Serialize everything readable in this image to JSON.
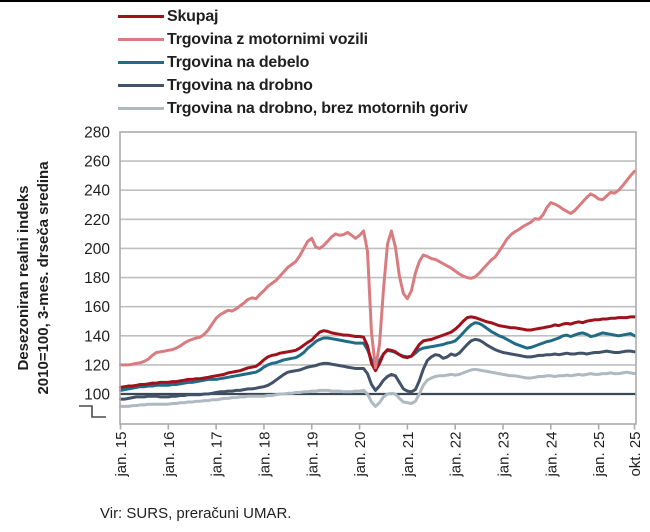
{
  "top_border_color": "#000000",
  "source_note": "Vir: SURS, preračuni UMAR.",
  "chart_data": {
    "type": "line",
    "title": "",
    "y_axis": {
      "title_line1": "Desezoniran realni indeks",
      "title_line2": "2010=100, 3-mes. drseča sredina",
      "ticks": [
        100,
        120,
        140,
        160,
        180,
        200,
        220,
        240,
        260,
        280
      ],
      "range_shown": [
        100,
        280
      ],
      "axis_break": true
    },
    "x_axis": {
      "tick_labels": [
        "jan. 15",
        "jan. 16",
        "jan. 17",
        "jan. 18",
        "jan. 19",
        "jan. 20",
        "jan. 21",
        "jan. 22",
        "jan. 23",
        "jan. 24",
        "jan. 25",
        "okt. 25"
      ],
      "tick_months": [
        0,
        12,
        24,
        36,
        48,
        60,
        72,
        84,
        96,
        108,
        120,
        129
      ],
      "months_total": 130,
      "start": "jan. 15",
      "end": "okt. 25"
    },
    "reference_line": {
      "value": 100,
      "color": "#3D4856"
    },
    "grid": {
      "on": true,
      "gridline_color": "#BFBFBF",
      "border_color": "#ABABAB",
      "text_color": "#1F1F1F"
    },
    "legend_position": "top-left",
    "series": [
      {
        "name": "Skupaj",
        "color": "#A0111B",
        "values": [
          104.5,
          105,
          105.5,
          105.5,
          106,
          106.5,
          106.5,
          107,
          107.5,
          107.5,
          108,
          108,
          108,
          108.5,
          108.5,
          109,
          109.5,
          110,
          110,
          110.5,
          110.5,
          111,
          111.5,
          112,
          112.5,
          113,
          113.5,
          114.5,
          115,
          115.5,
          116,
          117,
          118,
          118.5,
          119,
          121,
          123.5,
          125.5,
          126.5,
          127,
          128,
          128.5,
          129,
          129.5,
          130,
          131.5,
          133.5,
          135.5,
          137,
          140,
          142.5,
          143.5,
          143,
          142,
          141.5,
          141,
          140.5,
          140.5,
          140,
          139.5,
          139.5,
          139,
          133,
          121,
          116,
          121,
          127.5,
          130.5,
          130,
          129,
          127,
          125.5,
          125,
          126,
          130,
          134,
          136.5,
          137,
          137.5,
          138.5,
          139.5,
          140.5,
          141.5,
          142.5,
          144.5,
          147,
          150,
          152.5,
          153,
          152.5,
          151.5,
          150.5,
          149.5,
          149,
          148,
          147,
          146.5,
          146,
          145.5,
          145.5,
          145,
          144.5,
          144,
          144,
          144.5,
          145,
          145.5,
          146,
          146.5,
          147.5,
          147,
          148,
          148.5,
          148,
          149,
          149.5,
          149,
          150,
          150.5,
          151,
          151,
          151.5,
          151.5,
          152,
          152,
          152.5,
          152.5,
          152.5,
          153,
          153
        ]
      },
      {
        "name": "Trgovina z motornimi vozili",
        "color": "#D97C80",
        "values": [
          120,
          120,
          120,
          120.5,
          121,
          121.5,
          122.5,
          124,
          126.5,
          128.5,
          129,
          129.5,
          130,
          130.5,
          131.5,
          133,
          135,
          136.5,
          137.5,
          138.5,
          139,
          141,
          144,
          148,
          152,
          154.5,
          156,
          157.5,
          157,
          158.5,
          160.5,
          162.5,
          165,
          166,
          165.5,
          168.5,
          171,
          174,
          176,
          178,
          181,
          184,
          187,
          189,
          191,
          195,
          200,
          205,
          207,
          201,
          200,
          202,
          205,
          208,
          210,
          209,
          209.5,
          211,
          209,
          207,
          209,
          212,
          198,
          142,
          118,
          134,
          172,
          203,
          212,
          201,
          181,
          169,
          165.5,
          171,
          183,
          191,
          195.5,
          194.5,
          193,
          192.5,
          191,
          189.5,
          188,
          186.5,
          184.5,
          182.5,
          181,
          180,
          179.5,
          180.5,
          183,
          186,
          189,
          192,
          194,
          198,
          202,
          206.5,
          209.5,
          211.5,
          213,
          215,
          216.5,
          218,
          220.5,
          220,
          223,
          228,
          231.5,
          230.5,
          229,
          227,
          225.5,
          224,
          226,
          229,
          232,
          235,
          237.5,
          236,
          234,
          233.5,
          236,
          238.5,
          238,
          240,
          243,
          246.5,
          250,
          253
        ]
      },
      {
        "name": "Trgovina na debelo",
        "color": "#206C87",
        "values": [
          102.5,
          103,
          103.5,
          104,
          104.5,
          105,
          105,
          105.5,
          105.5,
          106,
          106,
          106,
          106,
          106.5,
          106.5,
          107,
          107.5,
          108,
          108,
          108.5,
          109,
          109.5,
          110,
          110,
          110,
          110.5,
          111,
          111.5,
          112,
          112.5,
          113,
          113.5,
          114,
          114.5,
          115,
          116.5,
          118.5,
          120,
          121,
          121.5,
          122.5,
          123.5,
          124,
          124.5,
          125,
          126.5,
          128.5,
          131.5,
          133.5,
          136,
          137.5,
          138.5,
          138.5,
          138,
          137.5,
          137,
          136.5,
          136,
          135.5,
          135,
          135,
          135,
          130.5,
          123.5,
          120.5,
          123,
          127.5,
          130,
          129.5,
          128.5,
          127,
          126,
          125.5,
          126,
          128,
          130.5,
          131.5,
          132,
          132.5,
          133,
          133.5,
          134,
          135,
          135.5,
          136.5,
          139,
          142,
          145,
          147.5,
          149,
          148.5,
          147,
          145,
          143,
          141.5,
          140,
          139,
          137.5,
          136,
          134.5,
          133.5,
          132.5,
          131.5,
          132,
          133,
          134,
          135,
          136,
          136.5,
          137.5,
          138.5,
          140,
          140.5,
          139.5,
          140.5,
          141.5,
          142,
          141,
          139.5,
          140,
          141,
          142,
          141.5,
          141,
          140.5,
          140,
          140.5,
          141,
          141.5,
          140
        ]
      },
      {
        "name": "Trgovina na drobno",
        "color": "#425269",
        "values": [
          96.5,
          96.5,
          97,
          97.5,
          98,
          98,
          98,
          98.5,
          98.5,
          98.5,
          98,
          98,
          98,
          98.5,
          98.5,
          99,
          99,
          99.5,
          99.5,
          99.5,
          99.5,
          100,
          100,
          100.5,
          101,
          101.5,
          101.5,
          102,
          102,
          102.5,
          102.5,
          103,
          103.5,
          103.5,
          104,
          104.5,
          105,
          106,
          107.5,
          109.5,
          111.5,
          113.5,
          115,
          115.5,
          116,
          116.5,
          117.5,
          118.5,
          119,
          119.5,
          120.5,
          121,
          121,
          120.5,
          120,
          119.5,
          119,
          118.5,
          118,
          117.5,
          117.5,
          117.5,
          114,
          106.5,
          102.5,
          105.5,
          109.5,
          112,
          113.5,
          112.5,
          108,
          103.5,
          102,
          101.5,
          103,
          109,
          117,
          123,
          125.5,
          127,
          126.5,
          124.5,
          125.5,
          127.5,
          126.5,
          128,
          131,
          134,
          136.5,
          137.5,
          137,
          135.5,
          133.5,
          132,
          130.5,
          129.5,
          128.5,
          128,
          127.5,
          127,
          126.5,
          126,
          125.5,
          125.5,
          126,
          126.5,
          126.5,
          127,
          127,
          127.5,
          127,
          127.5,
          128,
          127.5,
          127.5,
          128,
          128,
          127.5,
          128,
          128.5,
          128.5,
          129,
          129.5,
          129,
          128.5,
          128.5,
          129,
          129.5,
          129.5,
          129
        ]
      },
      {
        "name": "Trgovina na drobno, brez motornih goriv",
        "color": "#AFB9C1",
        "values": [
          91.5,
          91.5,
          91.5,
          92,
          92,
          92.5,
          92.5,
          93,
          93,
          93,
          93,
          93,
          93,
          93.5,
          93.5,
          94,
          94,
          94.5,
          94.5,
          95,
          95,
          95.5,
          95.5,
          96,
          96,
          96.5,
          97,
          97,
          97.5,
          97.5,
          98,
          98,
          98.5,
          98.5,
          98.5,
          98.5,
          98.5,
          99,
          99,
          99.5,
          100,
          100,
          100.5,
          100.5,
          101,
          101,
          101.5,
          101.5,
          102,
          102,
          102.5,
          102.5,
          102.5,
          102,
          102,
          102,
          101.5,
          101.5,
          101.5,
          102,
          102,
          102.5,
          100,
          94.5,
          91.5,
          94,
          98,
          100,
          100.5,
          100,
          97,
          94.5,
          94,
          93.5,
          95,
          100,
          106,
          109.5,
          111,
          112,
          112.5,
          112.5,
          113,
          113.5,
          113,
          113.5,
          114.5,
          115.5,
          116.5,
          117,
          116.5,
          116,
          115.5,
          115,
          114.5,
          114,
          113.5,
          113,
          112.5,
          112.5,
          112,
          111.5,
          111,
          111,
          111.5,
          112,
          112,
          112.5,
          112.5,
          112,
          112.5,
          112.5,
          113,
          112.5,
          113,
          113.5,
          113,
          113.5,
          114,
          113.5,
          113.5,
          114,
          114,
          114.5,
          114,
          114,
          114.5,
          115,
          114.5,
          114
        ]
      }
    ],
    "source": "Vir: SURS, preračuni UMAR."
  }
}
